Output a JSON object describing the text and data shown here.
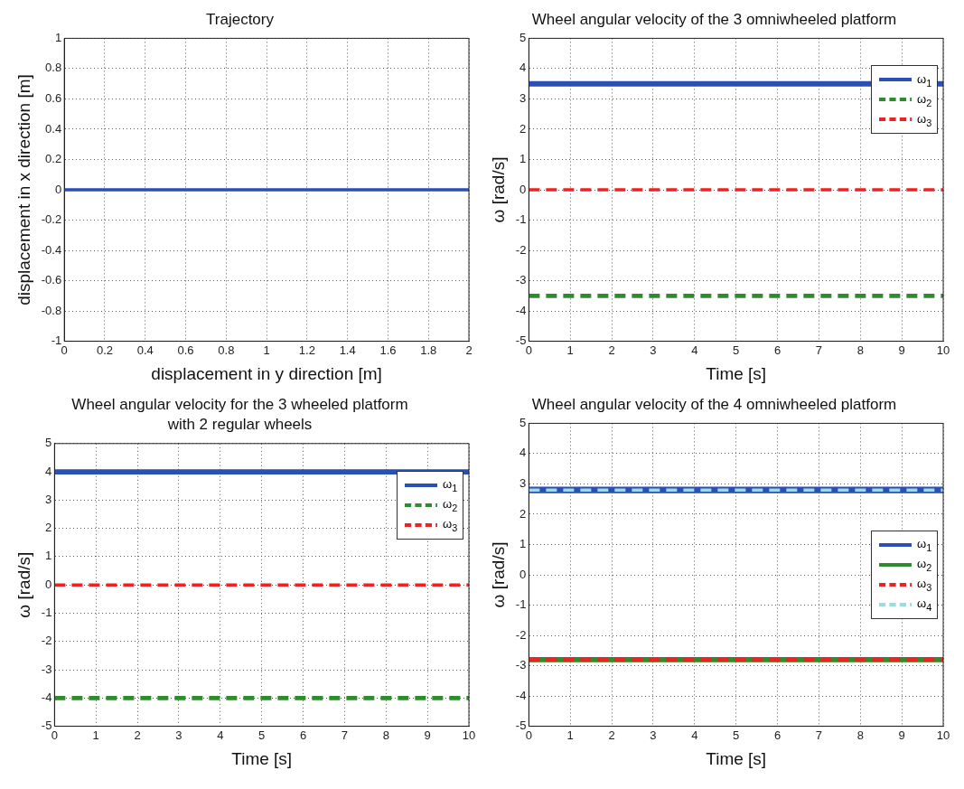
{
  "chart_data": [
    {
      "type": "line",
      "title": "Trajectory",
      "xlabel": "displacement in y direction [m]",
      "ylabel": "displacement in x direction [m]",
      "x": [
        0,
        2
      ],
      "values": [
        0,
        0
      ],
      "color": "#2a4fb5",
      "xlim": [
        0,
        2
      ],
      "ylim": [
        -1,
        1
      ],
      "xticks": [
        0,
        0.2,
        0.4,
        0.6,
        0.8,
        1,
        1.2,
        1.4,
        1.6,
        1.8,
        2
      ],
      "yticks": [
        -1,
        -0.8,
        -0.6,
        -0.4,
        -0.2,
        0,
        0.2,
        0.4,
        0.6,
        0.8,
        1
      ],
      "grid": true,
      "legend": false,
      "marker": "none"
    },
    {
      "type": "line",
      "title": "Wheel angular velocity of the 3 omniwheeled platform",
      "xlabel": "Time [s]",
      "ylabel": "ω [rad/s]",
      "x": [
        0,
        10
      ],
      "series": [
        {
          "name": "ω$_{1}$",
          "color": "#2a4fb5",
          "values": [
            3.5,
            3.5
          ],
          "line_style": "solid"
        },
        {
          "name": "ω$_{2}$",
          "color": "#2e8b2e",
          "values": [
            -3.5,
            -3.5
          ],
          "line_style": "dashed"
        },
        {
          "name": "ω$_{3}$",
          "color": "#ee2222",
          "values": [
            0,
            0
          ],
          "line_style": "dashed"
        }
      ],
      "xlim": [
        0,
        10
      ],
      "ylim": [
        -5,
        5
      ],
      "xticks": [
        0,
        1,
        2,
        3,
        4,
        5,
        6,
        7,
        8,
        9,
        10
      ],
      "yticks": [
        -5,
        -4,
        -3,
        -2,
        -1,
        0,
        1,
        2,
        3,
        4,
        5
      ],
      "grid": true,
      "legend": "top right",
      "marker": "none"
    },
    {
      "type": "line",
      "title": "Wheel angular velocity for the 3 wheeled platform",
      "subtitle": "with 2 regular wheels",
      "xlabel": "Time [s]",
      "ylabel": "ω [rad/s]",
      "x": [
        0,
        10
      ],
      "series": [
        {
          "name": "ω$_{1}$",
          "color": "#2a4fb5",
          "values": [
            4,
            4
          ],
          "line_style": "solid"
        },
        {
          "name": "ω$_{2}$",
          "color": "#2e8b2e",
          "values": [
            -4,
            -4
          ],
          "line_style": "dashed"
        },
        {
          "name": "ω$_{3}$",
          "color": "#ee2222",
          "values": [
            0,
            0
          ],
          "line_style": "dashed"
        }
      ],
      "xlim": [
        0,
        10
      ],
      "ylim": [
        -5,
        5
      ],
      "xticks": [
        0,
        1,
        2,
        3,
        4,
        5,
        6,
        7,
        8,
        9,
        10
      ],
      "yticks": [
        -5,
        -4,
        -3,
        -2,
        -1,
        0,
        1,
        2,
        3,
        4,
        5
      ],
      "grid": true,
      "legend": "top right",
      "marker": "none"
    },
    {
      "type": "line",
      "title": "Wheel angular velocity of the 4 omniwheeled platform",
      "xlabel": "Time [s]",
      "ylabel": "ω [rad/s]",
      "x": [
        0,
        10
      ],
      "series": [
        {
          "name": "ω$_{1}$",
          "color": "#2a4fb5",
          "values": [
            2.8,
            2.8
          ],
          "line_style": "solid"
        },
        {
          "name": "ω$_{2}$",
          "color": "#2e8b2e",
          "values": [
            -2.8,
            -2.8
          ],
          "line_style": "solid"
        },
        {
          "name": "ω$_{3}$",
          "color": "#ee2222",
          "values": [
            -2.8,
            -2.8
          ],
          "line_style": "dashed"
        },
        {
          "name": "ω$_{4}$",
          "color": "#99dddd",
          "values": [
            2.8,
            2.8
          ],
          "line_style": "dashed"
        }
      ],
      "xlim": [
        0,
        10
      ],
      "ylim": [
        -5,
        5
      ],
      "xticks": [
        0,
        1,
        2,
        3,
        4,
        5,
        6,
        7,
        8,
        9,
        10
      ],
      "yticks": [
        -5,
        -4,
        -3,
        -2,
        -1,
        0,
        1,
        2,
        3,
        4,
        5
      ],
      "grid": true,
      "legend": "right",
      "marker": "none"
    }
  ]
}
